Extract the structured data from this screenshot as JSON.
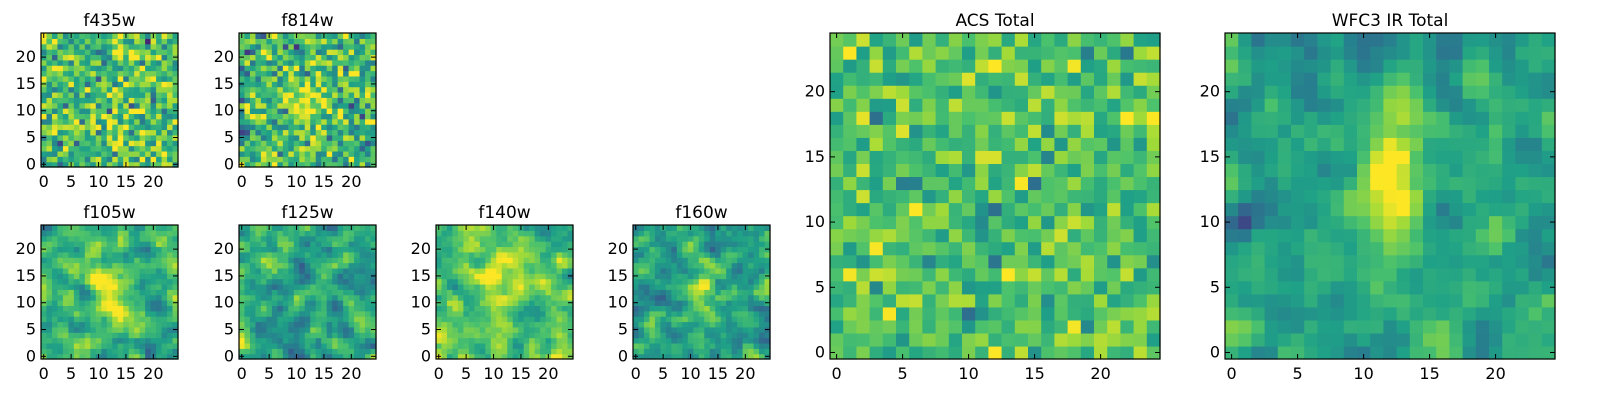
{
  "figure": {
    "panels": [
      "f435w",
      "f814w",
      "f105w",
      "f125w",
      "f140w",
      "f160w",
      "acs_total",
      "wfc3_ir_total"
    ]
  },
  "colormap": {
    "name": "viridis",
    "stops": [
      "#440154",
      "#46317e",
      "#365c8d",
      "#277f8e",
      "#1fa187",
      "#4ac16d",
      "#a0da39",
      "#fde725"
    ]
  },
  "chart_data": [
    {
      "id": "f435w",
      "type": "heatmap",
      "title": "f435w",
      "size": 25,
      "xticks": [
        0,
        5,
        10,
        15,
        20
      ],
      "yticks": [
        0,
        5,
        10,
        15,
        20
      ],
      "xtick_labels": [
        "0",
        "5",
        "10",
        "15",
        "20"
      ],
      "ytick_labels": [
        "0",
        "5",
        "10",
        "15",
        "20"
      ],
      "xlim": [
        -0.5,
        24.5
      ],
      "ylim": [
        -0.5,
        24.5
      ],
      "colormap": "viridis",
      "values_note": "25x25 noisy pixel intensities, mean ~0.70, sd ~0.16, normalized 0-1"
    },
    {
      "id": "f814w",
      "type": "heatmap",
      "title": "f814w",
      "size": 25,
      "xticks": [
        0,
        5,
        10,
        15,
        20
      ],
      "yticks": [
        0,
        5,
        10,
        15,
        20
      ],
      "xtick_labels": [
        "0",
        "5",
        "10",
        "15",
        "20"
      ],
      "ytick_labels": [
        "0",
        "5",
        "10",
        "15",
        "20"
      ],
      "xlim": [
        -0.5,
        24.5
      ],
      "ylim": [
        -0.5,
        24.5
      ],
      "colormap": "viridis",
      "values_note": "25x25 noisy pixel intensities with faint central source"
    },
    {
      "id": "f105w",
      "type": "heatmap",
      "title": "f105w",
      "size": 25,
      "xticks": [
        0,
        5,
        10,
        15,
        20
      ],
      "yticks": [
        0,
        5,
        10,
        15,
        20
      ],
      "xtick_labels": [
        "0",
        "5",
        "10",
        "15",
        "20"
      ],
      "ytick_labels": [
        "0",
        "5",
        "10",
        "15",
        "20"
      ],
      "xlim": [
        -0.5,
        24.5
      ],
      "ylim": [
        -0.5,
        24.5
      ],
      "colormap": "viridis",
      "values_note": "25x25 smoothed pixel intensities, bright elongated source near x~12"
    },
    {
      "id": "f125w",
      "type": "heatmap",
      "title": "f125w",
      "size": 25,
      "xticks": [
        0,
        5,
        10,
        15,
        20
      ],
      "yticks": [
        0,
        5,
        10,
        15,
        20
      ],
      "xtick_labels": [
        "0",
        "5",
        "10",
        "15",
        "20"
      ],
      "ytick_labels": [
        "0",
        "5",
        "10",
        "15",
        "20"
      ],
      "xlim": [
        -0.5,
        24.5
      ],
      "ylim": [
        -0.5,
        24.5
      ],
      "colormap": "viridis",
      "values_note": "25x25 smoothed pixel intensities"
    },
    {
      "id": "f140w",
      "type": "heatmap",
      "title": "f140w",
      "size": 25,
      "xticks": [
        0,
        5,
        10,
        15,
        20
      ],
      "yticks": [
        0,
        5,
        10,
        15,
        20
      ],
      "xtick_labels": [
        "0",
        "5",
        "10",
        "15",
        "20"
      ],
      "ytick_labels": [
        "0",
        "5",
        "10",
        "15",
        "20"
      ],
      "xlim": [
        -0.5,
        24.5
      ],
      "ylim": [
        -0.5,
        24.5
      ],
      "colormap": "viridis",
      "values_note": "25x25 smoothed pixel intensities, bright central source"
    },
    {
      "id": "f160w",
      "type": "heatmap",
      "title": "f160w",
      "size": 25,
      "xticks": [
        0,
        5,
        10,
        15,
        20
      ],
      "yticks": [
        0,
        5,
        10,
        15,
        20
      ],
      "xtick_labels": [
        "0",
        "5",
        "10",
        "15",
        "20"
      ],
      "ytick_labels": [
        "0",
        "5",
        "10",
        "15",
        "20"
      ],
      "xlim": [
        -0.5,
        24.5
      ],
      "ylim": [
        -0.5,
        24.5
      ],
      "colormap": "viridis",
      "values_note": "25x25 smoothed pixel intensities, vertical bright source near x~12"
    },
    {
      "id": "acs_total",
      "type": "heatmap",
      "title": "ACS Total",
      "size": 25,
      "xticks": [
        0,
        5,
        10,
        15,
        20
      ],
      "yticks": [
        0,
        5,
        10,
        15,
        20
      ],
      "xtick_labels": [
        "0",
        "5",
        "10",
        "15",
        "20"
      ],
      "ytick_labels": [
        "0",
        "5",
        "10",
        "15",
        "20"
      ],
      "xlim": [
        -0.5,
        24.5
      ],
      "ylim": [
        -0.5,
        24.5
      ],
      "colormap": "viridis",
      "values_note": "25x25 summed ACS pixel intensities, mean ~0.72"
    },
    {
      "id": "wfc3_ir_total",
      "type": "heatmap",
      "title": "WFC3 IR Total",
      "size": 25,
      "xticks": [
        0,
        5,
        10,
        15,
        20
      ],
      "yticks": [
        0,
        5,
        10,
        15,
        20
      ],
      "xtick_labels": [
        "0",
        "5",
        "10",
        "15",
        "20"
      ],
      "ytick_labels": [
        "0",
        "5",
        "10",
        "15",
        "20"
      ],
      "xlim": [
        -0.5,
        24.5
      ],
      "ylim": [
        -0.5,
        24.5
      ],
      "colormap": "viridis",
      "values_note": "25x25 summed WFC3 IR intensities, bright vertical source at x~12, y~9-18, dark blob at x~0-2, y~9-11"
    }
  ]
}
